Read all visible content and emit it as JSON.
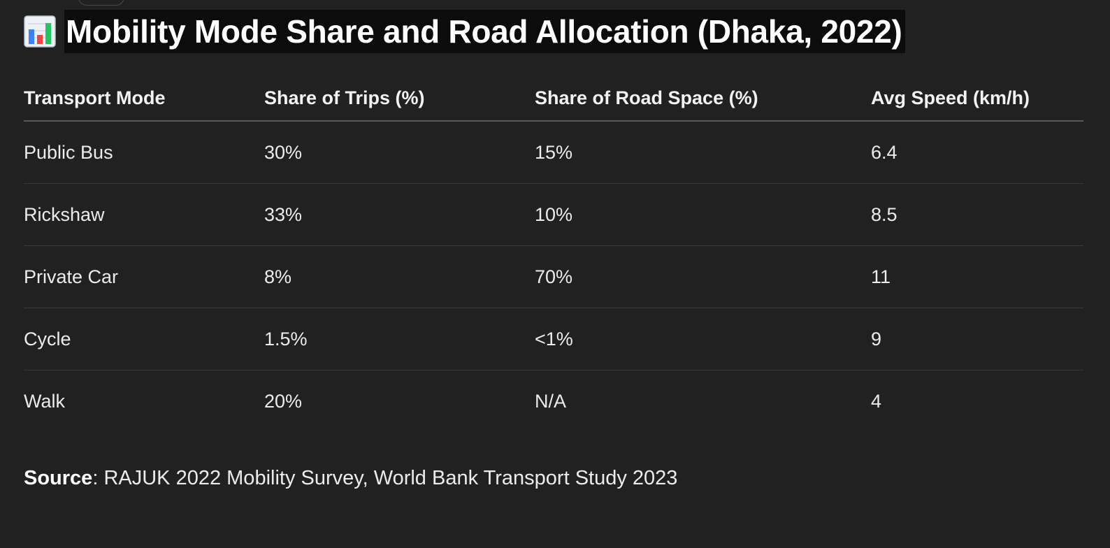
{
  "title": "Mobility Mode Share and Road Allocation (Dhaka, 2022)",
  "icon": "bar-chart-icon",
  "table": {
    "headers": [
      "Transport Mode",
      "Share of Trips (%)",
      "Share of Road Space (%)",
      "Avg Speed (km/h)"
    ],
    "rows": [
      [
        "Public Bus",
        "30%",
        "15%",
        "6.4"
      ],
      [
        "Rickshaw",
        "33%",
        "10%",
        "8.5"
      ],
      [
        "Private Car",
        "8%",
        "70%",
        "11"
      ],
      [
        "Cycle",
        "1.5%",
        "<1%",
        "9"
      ],
      [
        "Walk",
        "20%",
        "N/A",
        "4"
      ]
    ]
  },
  "source": {
    "label": "Source",
    "separator": ": ",
    "text": "RAJUK 2022 Mobility Survey, World Bank Transport Study 2023"
  },
  "colors": {
    "background": "#212121",
    "title_highlight": "#0c0c0c",
    "text": "#ececec"
  }
}
